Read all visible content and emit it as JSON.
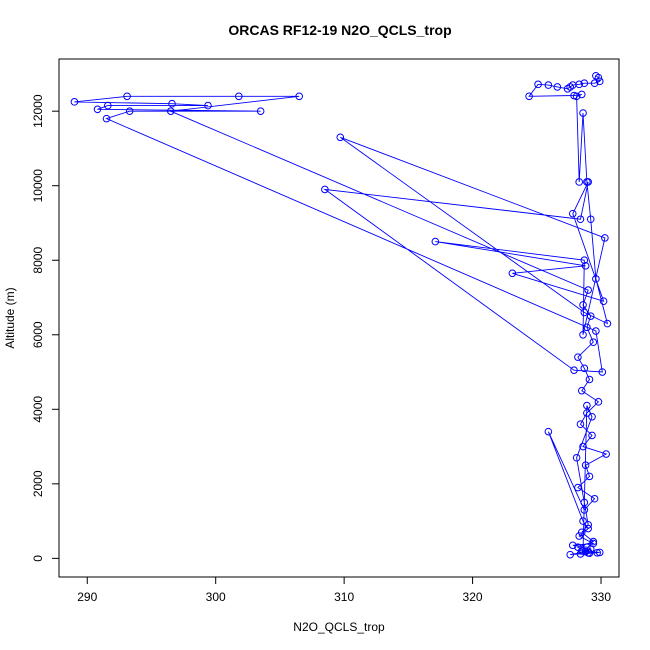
{
  "chart_data": {
    "type": "scatter",
    "title": "ORCAS RF12-19 N2O_QCLS_trop",
    "xlabel": "N2O_QCLS_trop",
    "ylabel": "Altitude (m)",
    "xlim": [
      287.8,
      331.4
    ],
    "ylim": [
      -500,
      13400
    ],
    "x_ticks": [
      290,
      300,
      310,
      320,
      330
    ],
    "y_ticks": [
      0,
      2000,
      4000,
      6000,
      8000,
      10000,
      12000
    ],
    "markers": "open-circle",
    "connected": true,
    "grid": false,
    "legend": "none",
    "color": "#0000ff",
    "series": [
      {
        "x": [
          329.6,
          329.8,
          329.9,
          329.5,
          328.7,
          328.3,
          327.8,
          327.6,
          327.4,
          326.6,
          325.9,
          325.1,
          324.4,
          327.9,
          328.5,
          328.1,
          328.3,
          328.6,
          328.9,
          329.2,
          329.6,
          330.5,
          328.7,
          309.7,
          330.3,
          328.6,
          328.7,
          317.1,
          328.8,
          323.1,
          330.2,
          327.8,
          329.0,
          328.4,
          308.5,
          327.9,
          330.1,
          329.6,
          291.5,
          293.3,
          303.5,
          290.8,
          291.6,
          299.4,
          296.6,
          289.0,
          293.1,
          301.8,
          306.5,
          296.5,
          329.0,
          328.6,
          329.2,
          328.9,
          329.4,
          328.2,
          328.7,
          329.1,
          328.5,
          329.8,
          328.9,
          328.4,
          329.3,
          328.6,
          330.4,
          328.8,
          329.1,
          328.2,
          329.5,
          328.7,
          325.9,
          328.6,
          329.0,
          328.3,
          329.4,
          327.8,
          328.9,
          329.2,
          328.5,
          329.7,
          327.6,
          328.8,
          329.1,
          328.4,
          329.9,
          328.6,
          328.9,
          329.3,
          328.1,
          328.7,
          329.0,
          328.5,
          329.4,
          328.2,
          329.0
        ],
        "y": [
          12950,
          12900,
          12800,
          12750,
          12750,
          12720,
          12700,
          12650,
          12600,
          12650,
          12700,
          12720,
          12400,
          12420,
          12450,
          12400,
          10100,
          11950,
          10100,
          9100,
          7500,
          6300,
          6600,
          11300,
          8600,
          6000,
          8000,
          8500,
          7850,
          7650,
          6900,
          9250,
          10100,
          9100,
          9900,
          5050,
          5000,
          6100,
          11800,
          12000,
          12000,
          12050,
          12150,
          12150,
          12200,
          12250,
          12400,
          12400,
          12400,
          12000,
          7200,
          6800,
          6500,
          6200,
          5800,
          5400,
          5100,
          4800,
          4500,
          4200,
          3900,
          3600,
          3300,
          3000,
          2800,
          2500,
          2200,
          1900,
          1600,
          1300,
          3400,
          1000,
          800,
          600,
          400,
          350,
          300,
          250,
          200,
          150,
          100,
          180,
          140,
          120,
          160,
          200,
          4100,
          3800,
          2700,
          1500,
          900,
          700,
          450,
          300,
          150
        ]
      }
    ]
  }
}
